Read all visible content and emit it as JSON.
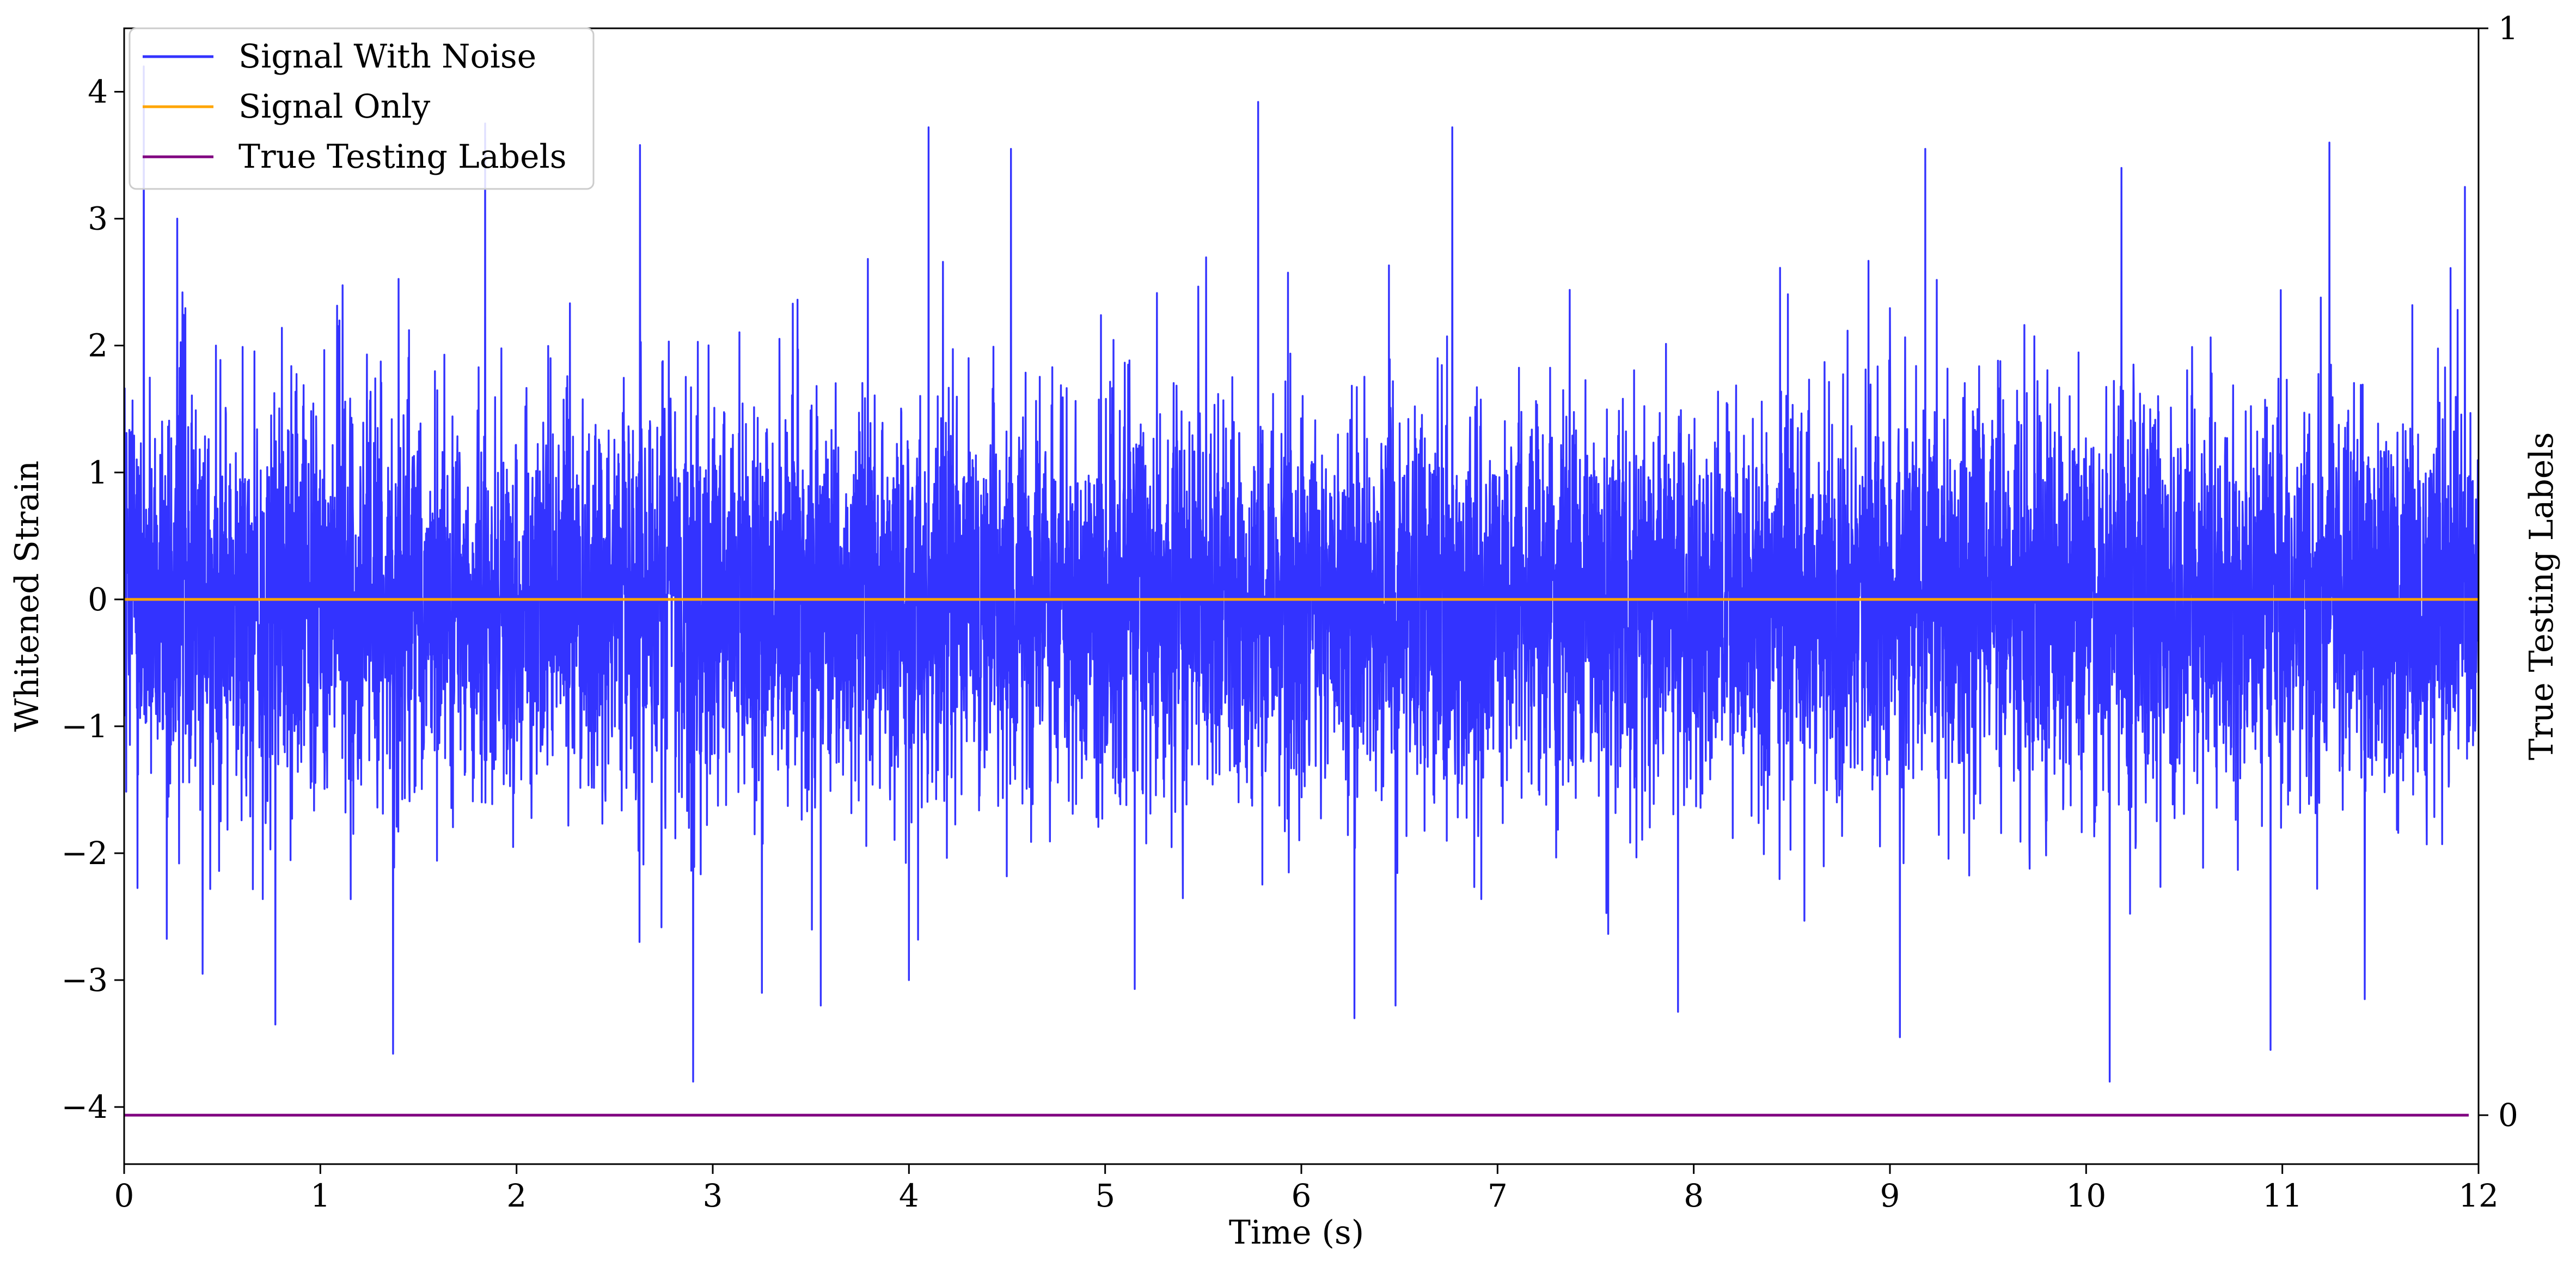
{
  "chart_data": {
    "type": "line",
    "title": "",
    "xlabel": "Time (s)",
    "ylabel": "Whitened Strain",
    "y2label": "True Testing Labels",
    "xlim": [
      0,
      12
    ],
    "ylim": [
      -4.45,
      4.5
    ],
    "y2lim": [
      -0.045,
      1.0
    ],
    "x_ticks": [
      0,
      1,
      2,
      3,
      4,
      5,
      6,
      7,
      8,
      9,
      10,
      11,
      12
    ],
    "x_tick_labels": [
      "0",
      "1",
      "2",
      "3",
      "4",
      "5",
      "6",
      "7",
      "8",
      "9",
      "10",
      "11",
      "12"
    ],
    "y_ticks": [
      -4,
      -3,
      -2,
      -1,
      0,
      1,
      2,
      3,
      4
    ],
    "y_tick_labels": [
      "−4",
      "−3",
      "−2",
      "−1",
      "0",
      "1",
      "2",
      "3",
      "4"
    ],
    "y2_ticks": [
      0,
      1
    ],
    "y2_tick_labels": [
      "0",
      "1"
    ],
    "grid": false,
    "legend_position": "top-left",
    "series": [
      {
        "name": "Signal With Noise",
        "color": "#3333ff",
        "kind": "noise",
        "x_range": [
          0,
          12
        ],
        "core_band": [
          -0.6,
          0.6
        ],
        "typical_envelope": [
          -2.5,
          2.5
        ],
        "peaks_max": [
          [
            0.1,
            4.2
          ],
          [
            0.27,
            3.0
          ],
          [
            1.84,
            3.75
          ],
          [
            2.63,
            3.58
          ],
          [
            4.1,
            3.72
          ],
          [
            4.52,
            3.55
          ],
          [
            5.78,
            3.92
          ],
          [
            6.77,
            3.72
          ],
          [
            9.18,
            3.55
          ],
          [
            10.18,
            3.4
          ],
          [
            11.24,
            3.6
          ],
          [
            11.93,
            3.25
          ]
        ],
        "peaks_min": [
          [
            0.4,
            -2.95
          ],
          [
            0.77,
            -3.35
          ],
          [
            1.37,
            -3.58
          ],
          [
            2.9,
            -3.8
          ],
          [
            3.25,
            -3.1
          ],
          [
            3.55,
            -3.2
          ],
          [
            4.0,
            -3.0
          ],
          [
            5.15,
            -3.07
          ],
          [
            6.27,
            -3.3
          ],
          [
            6.48,
            -3.2
          ],
          [
            7.92,
            -3.25
          ],
          [
            9.05,
            -3.45
          ],
          [
            10.12,
            -3.8
          ],
          [
            10.94,
            -3.55
          ],
          [
            11.42,
            -3.15
          ]
        ]
      },
      {
        "name": "Signal Only",
        "color": "#ffa500",
        "kind": "constant",
        "axis": "left",
        "x": [
          0,
          12
        ],
        "y": [
          0,
          0
        ]
      },
      {
        "name": "True Testing Labels",
        "color": "#800080",
        "kind": "constant",
        "axis": "right",
        "x": [
          0,
          11.95
        ],
        "y": [
          0,
          0
        ]
      }
    ]
  }
}
